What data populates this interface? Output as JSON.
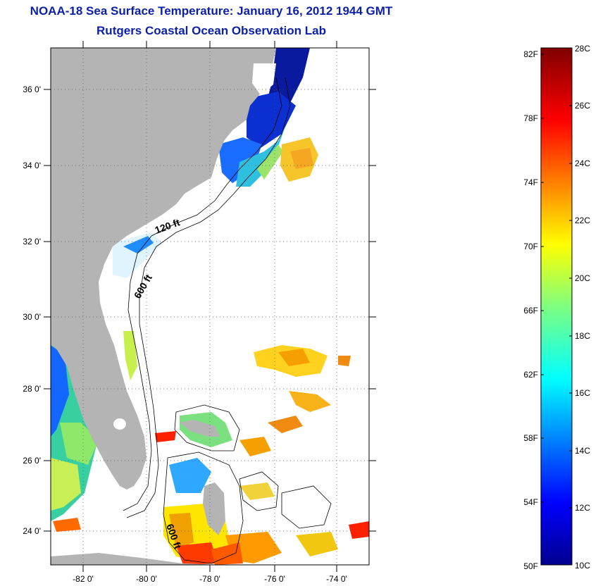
{
  "header": {
    "title": "NOAA-18 Sea Surface Temperature:  January 16, 2012 1944 GMT",
    "subtitle": "Rutgers Coastal Ocean Observation Lab"
  },
  "map": {
    "lat_labels": [
      "36 0'",
      "34 0'",
      "32 0'",
      "30 0'",
      "28 0'",
      "26 0'",
      "24 0'"
    ],
    "lon_labels": [
      "-82 0'",
      "-80 0'",
      "-78 0'",
      "-76 0'",
      "-74 0'"
    ],
    "contour_labels": [
      "120 ft",
      "600 ft",
      "600 ft"
    ],
    "land_color": "#b4b4b4",
    "grid": "dotted"
  },
  "colorbar": {
    "fahrenheit_labels": [
      "82F",
      "78F",
      "74F",
      "70F",
      "66F",
      "62F",
      "58F",
      "54F",
      "50F"
    ],
    "celsius_labels": [
      "28C",
      "26C",
      "24C",
      "22C",
      "20C",
      "18C",
      "16C",
      "14C",
      "12C",
      "10C"
    ],
    "colormap": "jet"
  }
}
